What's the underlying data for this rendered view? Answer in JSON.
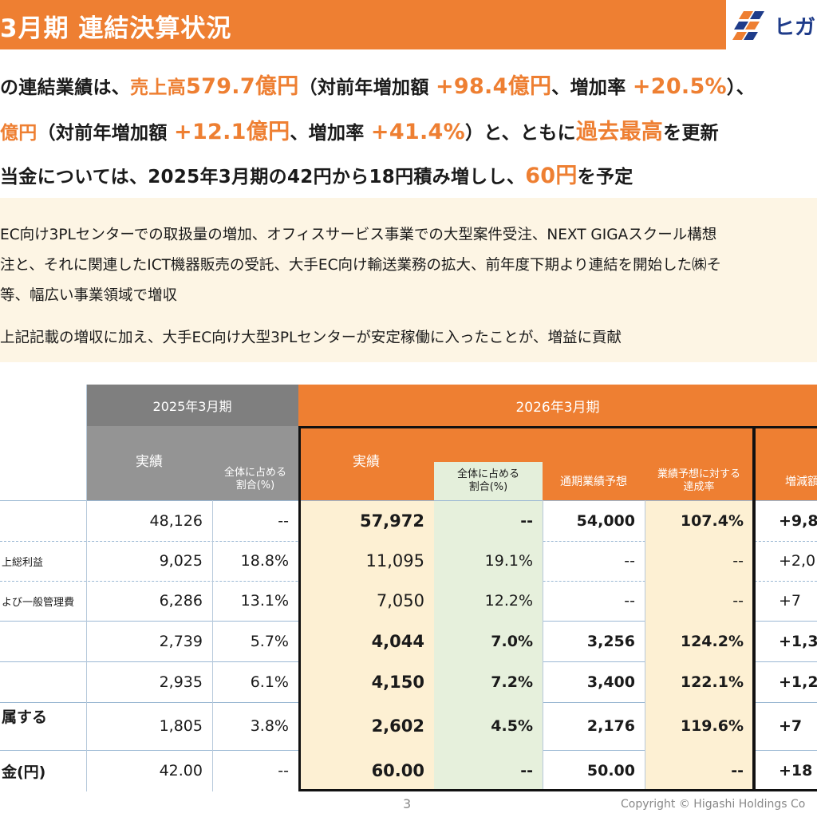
{
  "header": {
    "title": "3月期 連結決算状況",
    "logo_text": "ヒガ"
  },
  "summary": {
    "line1": {
      "pre": "の連結業績は、",
      "sales_label": "売上高",
      "sales_value": "579.7億円",
      "mid1": "（対前年増加額 ",
      "sales_inc": "+98.4億円",
      "mid2": "、増加率 ",
      "sales_rate": "+20.5%",
      "post": "）、"
    },
    "line2": {
      "pre": "億円",
      "mid1": "（対前年増加額 ",
      "inc": "+12.1億円",
      "mid2": "、増加率 ",
      "rate": "+41.4%",
      "mid3": "）と、ともに",
      "record": "過去最高",
      "post": "を更新"
    },
    "line3": {
      "pre": "当金については、2025年3月期の42円から18円積み増しし、",
      "dividend": "60円",
      "post": "を予定"
    }
  },
  "details": {
    "b1_l1": "EC向け3PLセンターでの取扱量の増加、オフィスサービス事業での大型案件受注、NEXT GIGAスクール構想",
    "b1_l2": "注と、それに関連したICT機器販売の受託、大手EC向け輸送業務の拡大、前年度下期より連結を開始した㈱そ",
    "b1_l3": "等、幅広い事業領域で増収",
    "b2": "上記記載の増収に加え、大手EC向け大型3PLセンターが安定稼働に入ったことが、増益に貢献"
  },
  "table": {
    "fy2025": "2025年3月期",
    "fy2026": "2026年3月期",
    "actual": "実績",
    "share_l1": "全体に占める",
    "share_l2": "割合(%)",
    "forecast": "通期業績予想",
    "achieve_l1": "業績予想に対する",
    "achieve_l2": "達成率",
    "change": "増減額",
    "rows": [
      {
        "label": "",
        "a25": "48,126",
        "s25": "--",
        "a26": "57,972",
        "s26": "--",
        "fc": "54,000",
        "ach": "107.4%",
        "chg": "+9,8"
      },
      {
        "label": "上総利益",
        "a25": "9,025",
        "s25": "18.8%",
        "a26": "11,095",
        "s26": "19.1%",
        "fc": "--",
        "ach": "--",
        "chg": "+2,0"
      },
      {
        "label": "よび一般管理費",
        "a25": "6,286",
        "s25": "13.1%",
        "a26": "7,050",
        "s26": "12.2%",
        "fc": "--",
        "ach": "--",
        "chg": "+7"
      },
      {
        "label": "",
        "a25": "2,739",
        "s25": "5.7%",
        "a26": "4,044",
        "s26": "7.0%",
        "fc": "3,256",
        "ach": "124.2%",
        "chg": "+1,3"
      },
      {
        "label": "",
        "a25": "2,935",
        "s25": "6.1%",
        "a26": "4,150",
        "s26": "7.2%",
        "fc": "3,400",
        "ach": "122.1%",
        "chg": "+1,2"
      },
      {
        "label": "属する",
        "a25": "1,805",
        "s25": "3.8%",
        "a26": "2,602",
        "s26": "4.5%",
        "fc": "2,176",
        "ach": "119.6%",
        "chg": "+7"
      },
      {
        "label": "金(円)",
        "a25": "42.00",
        "s25": "--",
        "a26": "60.00",
        "s26": "--",
        "fc": "50.00",
        "ach": "--",
        "chg": "+18"
      }
    ]
  },
  "footer": {
    "page": "3",
    "copyright": "Copyright © Higashi Holdings Co"
  },
  "colors": {
    "accent": "#ee7f32",
    "header_gray": "#7f7f7f",
    "highlight_yellow": "#fdf0d3",
    "highlight_green": "#e6f0dc",
    "detail_bg": "#fdf5e4"
  }
}
